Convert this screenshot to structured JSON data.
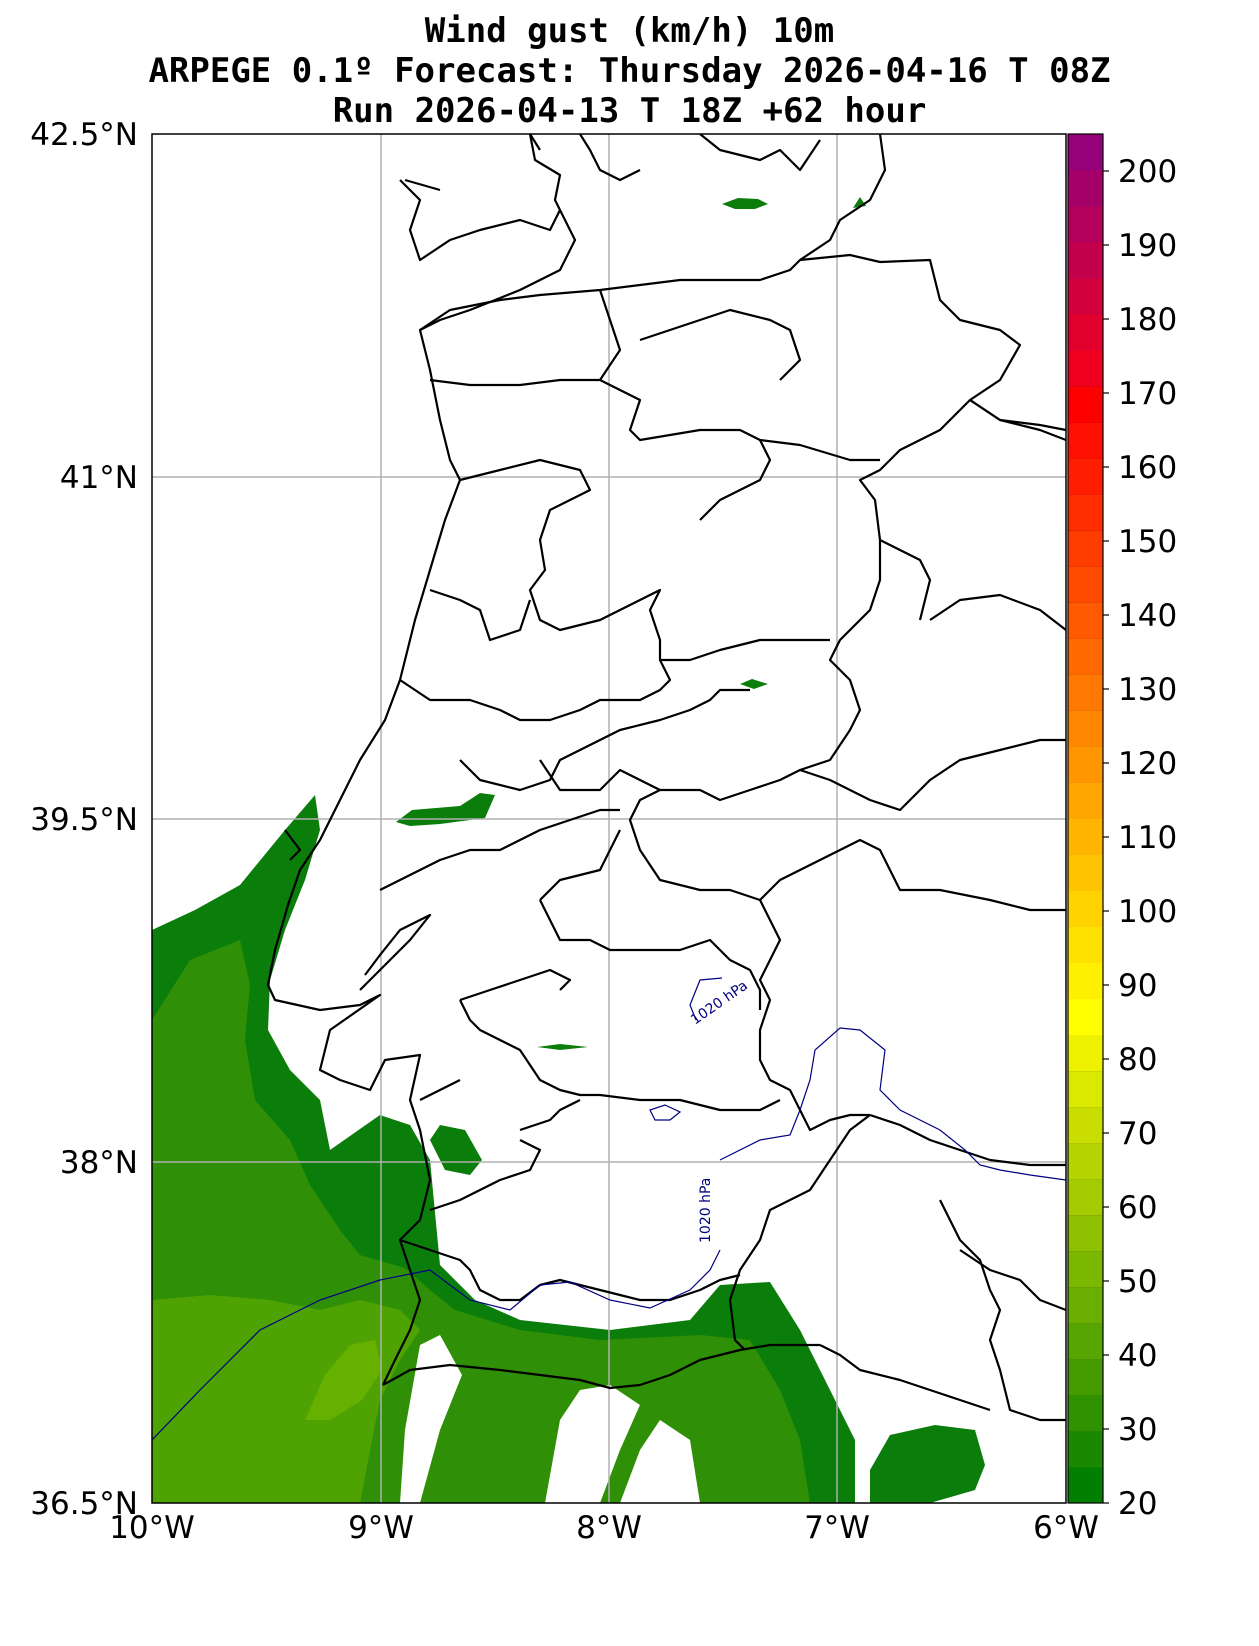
{
  "titles": {
    "line1": "Wind gust (km/h) 10m",
    "line2": "ARPEGE 0.1º Forecast: Thursday 2026-04-16 T 08Z",
    "line3": "Run 2026-04-13 T 18Z +62 hour"
  },
  "axes": {
    "lat_labels": [
      "42.5°N",
      "41°N",
      "39.5°N",
      "38°N",
      "36.5°N"
    ],
    "lon_labels": [
      "10°W",
      "9°W",
      "8°W",
      "7°W",
      "6°W"
    ],
    "lat_range": [
      36.5,
      42.5
    ],
    "lon_range": [
      -10,
      -6
    ]
  },
  "colorbar": {
    "labels": [
      "200",
      "190",
      "180",
      "170",
      "160",
      "150",
      "140",
      "130",
      "120",
      "110",
      "100",
      "90",
      "80",
      "70",
      "60",
      "50",
      "40",
      "30",
      "20"
    ],
    "range": [
      20,
      205
    ],
    "colors": [
      "#007f00",
      "#1a8800",
      "#309200",
      "#449b00",
      "#57a500",
      "#6aae00",
      "#7db800",
      "#90c100",
      "#a3cb00",
      "#b6d400",
      "#c9de00",
      "#dbe800",
      "#eef100",
      "#ffff00",
      "#fff000",
      "#ffe100",
      "#ffd200",
      "#ffc300",
      "#ffb400",
      "#ffa500",
      "#ff9600",
      "#ff8700",
      "#ff7800",
      "#ff6900",
      "#ff5a00",
      "#ff4b00",
      "#ff3c00",
      "#ff2d00",
      "#ff1e00",
      "#ff0f00",
      "#ff0000",
      "#f0001e",
      "#e1002d",
      "#d2003c",
      "#c3004b",
      "#b4005a",
      "#a50069",
      "#960078"
    ]
  },
  "isobars": {
    "label_a": "1020 hPa",
    "label_b": "1020 hPa",
    "color": "#000080"
  },
  "map_colors": {
    "gust_dark": "#0b7d0b",
    "gust_mid": "#2f8f06",
    "gust_light": "#4ea303",
    "gust_lighter": "#66b100"
  }
}
